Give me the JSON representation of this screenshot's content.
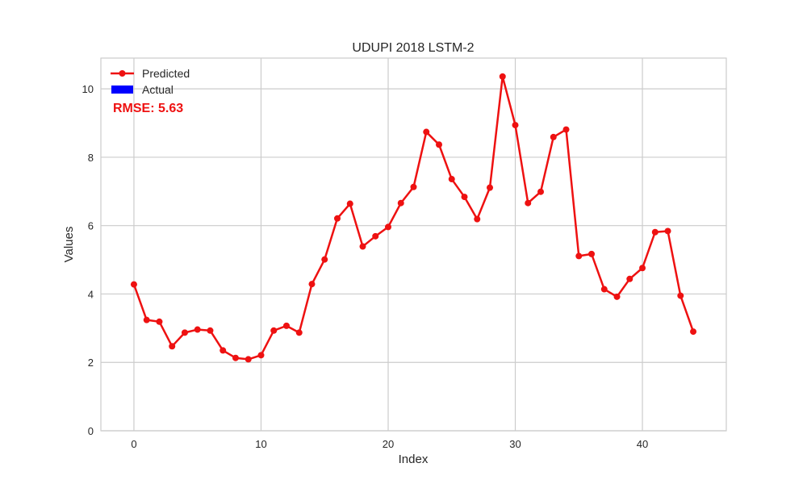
{
  "chart_data": {
    "type": "line",
    "title": "UDUPI 2018 LSTM-2",
    "xlabel": "Index",
    "ylabel": "Values",
    "xlim": [
      -2.6,
      46.6
    ],
    "ylim": [
      0,
      10.9
    ],
    "xticks": [
      0,
      10,
      20,
      30,
      40
    ],
    "yticks": [
      0,
      2,
      4,
      6,
      8,
      10
    ],
    "grid": true,
    "legend_position": "top-left",
    "annotation": "RMSE: 5.63",
    "annotation_color": "#ee1111",
    "series": [
      {
        "name": "Predicted",
        "color": "#ee1111",
        "marker": "circle",
        "x": [
          0,
          1,
          2,
          3,
          4,
          5,
          6,
          7,
          8,
          9,
          10,
          11,
          12,
          13,
          14,
          15,
          16,
          17,
          18,
          19,
          20,
          21,
          22,
          23,
          24,
          25,
          26,
          27,
          28,
          29,
          30,
          31,
          32,
          33,
          34,
          35,
          36,
          37,
          38,
          39,
          40,
          41,
          42,
          43,
          44
        ],
        "values": [
          4.28,
          3.24,
          3.19,
          2.47,
          2.87,
          2.96,
          2.93,
          2.35,
          2.13,
          2.09,
          2.21,
          2.93,
          3.07,
          2.87,
          4.29,
          5.01,
          6.21,
          6.64,
          5.39,
          5.69,
          5.96,
          6.66,
          7.13,
          8.74,
          8.37,
          7.36,
          6.84,
          6.19,
          7.11,
          10.36,
          8.94,
          6.66,
          6.99,
          8.59,
          8.81,
          5.11,
          5.17,
          4.14,
          3.92,
          4.44,
          4.76,
          5.81,
          5.84,
          3.95,
          2.9
        ]
      },
      {
        "name": "Actual",
        "color": "#0000ff",
        "legend_only": true,
        "values": []
      }
    ]
  }
}
